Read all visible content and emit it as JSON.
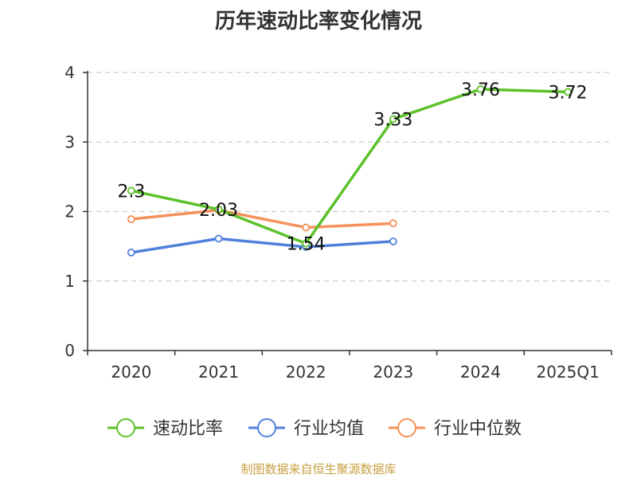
{
  "chart_data": {
    "type": "line",
    "title": "历年速动比率变化情况",
    "categories": [
      "2020",
      "2021",
      "2022",
      "2023",
      "2024",
      "2025Q1"
    ],
    "ylim": [
      0,
      4
    ],
    "yticks": [
      0,
      1,
      2,
      3,
      4
    ],
    "grid": true,
    "legend_position": "bottom",
    "series": [
      {
        "name": "速动比率",
        "color": "#5cc22a",
        "values": [
          2.3,
          2.03,
          1.54,
          3.33,
          3.76,
          3.72
        ],
        "labels": [
          "2.3",
          "2.03",
          "1.54",
          "3.33",
          "3.76",
          "3.72"
        ]
      },
      {
        "name": "行业均值",
        "color": "#4f80dc",
        "values": [
          1.41,
          1.61,
          1.49,
          1.57,
          null,
          null
        ]
      },
      {
        "name": "行业中位数",
        "color": "#f5915a",
        "values": [
          1.89,
          2.02,
          1.77,
          1.83,
          null,
          null
        ]
      }
    ]
  },
  "footer": "制图数据来自恒生聚源数据库"
}
